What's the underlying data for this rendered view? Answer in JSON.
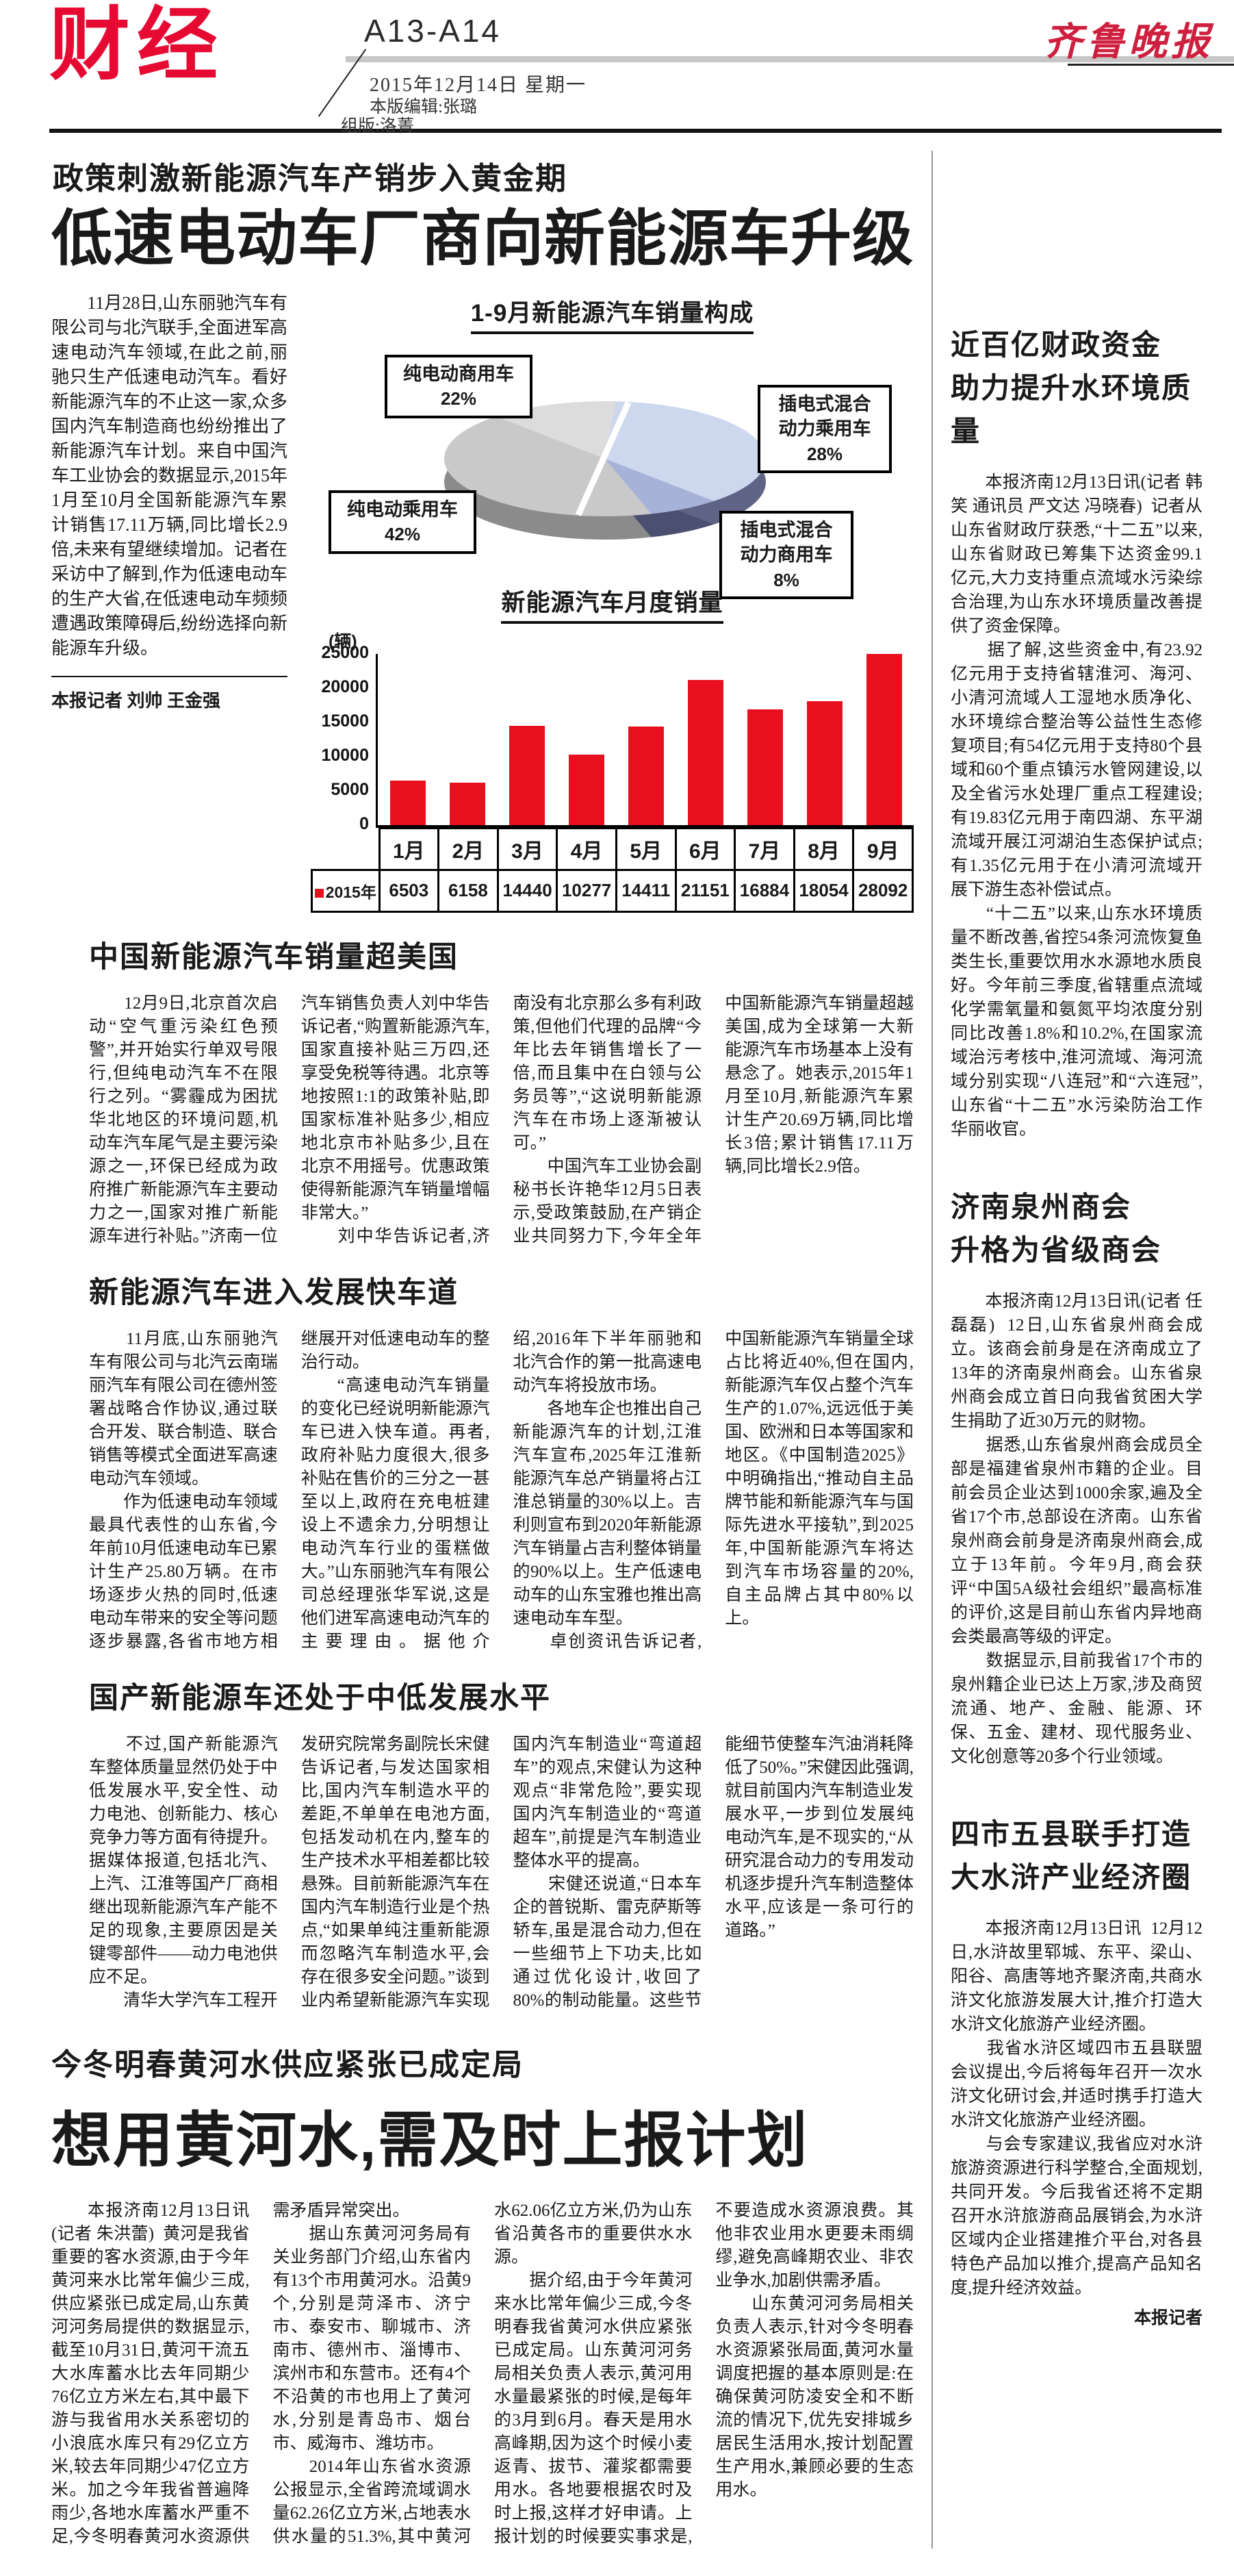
{
  "page": {
    "section_label": "财经",
    "page_range": "A13-A14",
    "date": "2015年12月14日  星期一",
    "editor": "本版编辑:张璐",
    "layout_editor": "组版:洛菁",
    "masthead": "齐鲁晚报"
  },
  "lead": {
    "kicker": "政策刺激新能源汽车产销步入黄金期",
    "headline": "低速电动车厂商向新能源车升级",
    "intro": "　　11月28日,山东丽驰汽车有限公司与北汽联手,全面进军高速电动汽车领域,在此之前,丽驰只生产低速电动汽车。看好新能源汽车的不止这一家,众多国内汽车制造商也纷纷推出了新能源汽车计划。来自中国汽车工业协会的数据显示,2015年1月至10月全国新能源汽车累计销售17.11万辆,同比增长2.9倍,未来有望继续增加。记者在采访中了解到,作为低速电动车的生产大省,在低速电动车频频遭遇政策障碍后,纷纷选择向新能源车升级。",
    "byline": "本报记者  刘帅  王金强"
  },
  "chart_data": [
    {
      "type": "pie",
      "title": "1-9月新能源汽车销量构成",
      "slices": [
        {
          "name": "纯电动商用车",
          "pct": "22%",
          "value": 22
        },
        {
          "name": "纯电动乘用车",
          "pct": "42%",
          "value": 42
        },
        {
          "name": "插电式混合\n动力乘用车",
          "pct": "28%",
          "value": 28
        },
        {
          "name": "插电式混合\n动力商用车",
          "pct": "8%",
          "value": 8
        }
      ],
      "colors": {
        "gray": "#c9c9c9",
        "gray_light": "#dcdcdc",
        "blue_light": "#cdd7ee",
        "blue": "#a7b2d8"
      },
      "legend_position": "callout-boxes"
    },
    {
      "type": "bar",
      "title": "新能源汽车月度销量",
      "unit": "(辆)",
      "categories": [
        "1月",
        "2月",
        "3月",
        "4月",
        "5月",
        "6月",
        "7月",
        "8月",
        "9月"
      ],
      "series": [
        {
          "name": "2015年",
          "values": [
            6503,
            6158,
            14440,
            10277,
            14411,
            21151,
            16884,
            18054,
            28092
          ]
        }
      ],
      "ylim": [
        0,
        25000
      ],
      "yticks": [
        0,
        5000,
        10000,
        15000,
        20000,
        25000
      ],
      "bar_color": "#e8101f",
      "grid": false,
      "legend_position": "table-row-left"
    }
  ],
  "sections": [
    {
      "heading": "中国新能源汽车销量超美国",
      "body": "　　12月9日,北京首次启动“空气重污染红色预警”,并开始实行单双号限行,但纯电动汽车不在限行之列。“雾霾成为困扰华北地区的环境问题,机动车汽车尾气是主要污染源之一,环保已经成为政府推广新能源汽车主要动力之一,国家对推广新能源车进行补贴。”济南一位汽车销售负责人刘中华告诉记者,“购置新能源汽车,国家直接补贴三万四,还享受免税等待遇。北京等地按照1:1的政策补贴,即国家标准补贴多少,相应地北京市补贴多少,且在北京不用摇号。优惠政策使得新能源汽车销量增幅非常大。”\n　　刘中华告诉记者,济南没有北京那么多有利政策,但他们代理的品牌“今年比去年销售增长了一倍,而且集中在白领与公务员等”,“这说明新能源汽车在市场上逐渐被认可。”\n　　中国汽车工业协会副秘书长许艳华12月5日表示,受政策鼓励,在产销企业共同努力下,今年全年中国新能源汽车销量超越美国,成为全球第一大新能源汽车市场基本上没有悬念了。她表示,2015年1月至10月,新能源汽车累计生产20.69万辆,同比增长3倍;累计销售17.11万辆,同比增长2.9倍。"
    },
    {
      "heading": "新能源汽车进入发展快车道",
      "body": "　　11月底,山东丽驰汽车有限公司与北汽云南瑞丽汽车有限公司在德州签署战略合作协议,通过联合开发、联合制造、联合销售等模式全面进军高速电动汽车领域。\n　　作为低速电动车领域最具代表性的山东省,今年前10月低速电动车已累计生产25.80万辆。在市场逐步火热的同时,低速电动车带来的安全等问题逐步暴露,各省市地方相继展开对低速电动车的整治行动。\n　　“高速电动汽车销量的变化已经说明新能源汽车已进入快车道。再者,政府补贴力度很大,很多补贴在售价的三分之一甚至以上,政府在充电桩建设上不遗余力,分明想让电动汽车行业的蛋糕做大。”山东丽驰汽车有限公司总经理张华军说,这是他们进军高速电动汽车的主要理由。据他介绍,2016年下半年丽驰和北汽合作的第一批高速电动汽车将投放市场。\n　　各地车企也推出自己新能源汽车的计划,江淮汽车宣布,2025年江淮新能源汽车总产销量将占江淮总销量的30%以上。吉利则宣布到2020年新能源汽车销量占吉利整体销量的90%以上。生产低速电动车的山东宝雅也推出高速电动车车型。\n　　卓创资讯告诉记者,中国新能源汽车销量全球占比将近40%,但在国内,新能源汽车仅占整个汽车生产的1.07%,远远低于美国、欧洲和日本等国家和地区。《中国制造2025》中明确指出,“推动自主品牌节能和新能源汽车与国际先进水平接轨”,到2025年,中国新能源汽车将达到汽车市场容量的20%,自主品牌占其中80%以上。"
    },
    {
      "heading": "国产新能源车还处于中低发展水平",
      "body": "　　不过,国产新能源汽车整体质量显然仍处于中低发展水平,安全性、动力电池、创新能力、核心竞争力等方面有待提升。据媒体报道,包括北汽、上汽、江淮等国产厂商相继出现新能源汽车产能不足的现象,主要原因是关键零部件——动力电池供应不足。\n　　清华大学汽车工程开发研究院常务副院长宋健告诉记者,与发达国家相比,国内汽车制造水平的差距,不单单在电池方面,包括发动机在内,整车的生产技术水平相差都比较悬殊。目前新能源汽车在国内汽车制造行业是个热点,“如果单纯注重新能源而忽略汽车制造水平,会存在很多安全问题。”谈到业内希望新能源汽车实现国内汽车制造业“弯道超车”的观点,宋健认为这种观点“非常危险”,要实现国内汽车制造业的“弯道超车”,前提是汽车制造业整体水平的提高。\n　　宋健还说道,“日本车企的普锐斯、雷克萨斯等轿车,虽是混合动力,但在一些细节上下功夫,比如通过优化设计,收回了80%的制动能量。这些节能细节使整车汽油消耗降低了50%。”宋健因此强调,就目前国内汽车制造业发展水平,一步到位发展纯电动汽车,是不现实的,“从研究混合动力的专用发动机逐步提升汽车制造整体水平,应该是一条可行的道路。”"
    }
  ],
  "bottom_article": {
    "kicker": "今冬明春黄河水供应紧张已成定局",
    "headline": "想用黄河水,需及时上报计划",
    "body": "　　本报济南12月13日讯(记者 朱洪蕾)  黄河是我省重要的客水资源,由于今年黄河来水比常年偏少三成,供应紧张已成定局,山东黄河河务局提供的数据显示,截至10月31日,黄河干流五大水库蓄水比去年同期少76亿立方米左右,其中最下游与我省用水关系密切的小浪底水库只有29亿立方米,较去年同期少47亿立方米。加之今年我省普遍降雨少,各地水库蓄水严重不足,今冬明春黄河水资源供需矛盾异常突出。\n　　据山东黄河河务局有关业务部门介绍,山东省内有13个市用黄河水。沿黄9个,分别是菏泽市、济宁市、泰安市、聊城市、济南市、德州市、淄博市、滨州市和东营市。还有4个不沿黄的市也用上了黄河水,分别是青岛市、烟台市、威海市、潍坊市。\n　　2014年山东省水资源公报显示,全省跨流域调水量62.26亿立方米,占地表水供水量的51.3%,其中黄河水62.06亿立方米,仍为山东省沿黄各市的重要供水水源。\n　　据介绍,由于今年黄河来水比常年偏少三成,今冬明春我省黄河水供应紧张已成定局。山东黄河河务局相关负责人表示,黄河用水量最紧张的时候,是每年的3月到6月。春天是用水高峰期,因为这个时候小麦返青、拔节、灌浆都需要用水。各地要根据农时及时上报,这样才好申请。上报计划的时候要实事求是,不要造成水资源浪费。其他非农业用水更要未雨绸缪,避免高峰期农业、非农业争水,加剧供需矛盾。\n　　山东黄河河务局相关负责人表示,针对今冬明春水资源紧张局面,黄河水量调度把握的基本原则是:在确保黄河防凌安全和不断流的情况下,优先安排城乡居民生活用水,按计划配置生产用水,兼顾必要的生态用水。"
  },
  "sidebar": {
    "articles": [
      {
        "title": "近百亿财政资金\n助力提升水环境质量",
        "body": "　　本报济南12月13日讯(记者 韩笑 通讯员 严文达 冯晓春)  记者从山东省财政厅获悉,“十二五”以来,山东省财政已筹集下达资金99.1亿元,大力支持重点流域水污染综合治理,为山东水环境质量改善提供了资金保障。\n　　据了解,这些资金中,有23.92亿元用于支持省辖淮河、海河、小清河流域人工湿地水质净化、水环境综合整治等公益性生态修复项目;有54亿元用于支持80个县域和60个重点镇污水管网建设,以及全省污水处理厂重点工程建设;有19.83亿元用于南四湖、东平湖流域开展江河湖泊生态保护试点;有1.35亿元用于在小清河流域开展下游生态补偿试点。\n　　“十二五”以来,山东水环境质量不断改善,省控54条河流恢复鱼类生长,重要饮用水水源地水质良好。今年前三季度,省辖重点流域化学需氧量和氨氮平均浓度分别同比改善1.8%和10.2%,在国家流域治污考核中,淮河流域、海河流域分别实现“八连冠”和“六连冠”,山东省“十二五”水污染防治工作华丽收官。",
        "sign": ""
      },
      {
        "title": "济南泉州商会\n升格为省级商会",
        "body": "　　本报济南12月13日讯(记者 任磊磊)  12日,山东省泉州商会成立。该商会前身是在济南成立了13年的济南泉州商会。山东省泉州商会成立首日向我省贫困大学生捐助了近30万元的财物。\n　　据悉,山东省泉州商会成员全部是福建省泉州市籍的企业。目前会员企业达到1000余家,遍及全省17个市,总部设在济南。山东省泉州商会前身是济南泉州商会,成立于13年前。今年9月,商会获评“中国5A级社会组织”最高标准的评价,这是目前山东省内异地商会类最高等级的评定。\n　　数据显示,目前我省17个市的泉州籍企业已达上万家,涉及商贸流通、地产、金融、能源、环保、五金、建材、现代服务业、文化创意等20多个行业领域。",
        "sign": ""
      },
      {
        "title": "四市五县联手打造\n大水浒产业经济圈",
        "body": "　　本报济南12月13日讯  12月12日,水浒故里郓城、东平、梁山、阳谷、高唐等地齐聚济南,共商水浒文化旅游发展大计,推介打造大水浒文化旅游产业经济圈。\n　　我省水浒区域四市五县联盟会议提出,今后将每年召开一次水浒文化研讨会,并适时携手打造大水浒文化旅游产业经济圈。\n　　与会专家建议,我省应对水浒旅游资源进行科学整合,全面规划,共同开发。今后我省还将不定期召开水浒旅游商品展销会,为水浒区域内企业搭建推介平台,对各县特色产品加以推介,提高产品知名度,提升经济效益。",
        "sign": "本报记者"
      }
    ]
  }
}
